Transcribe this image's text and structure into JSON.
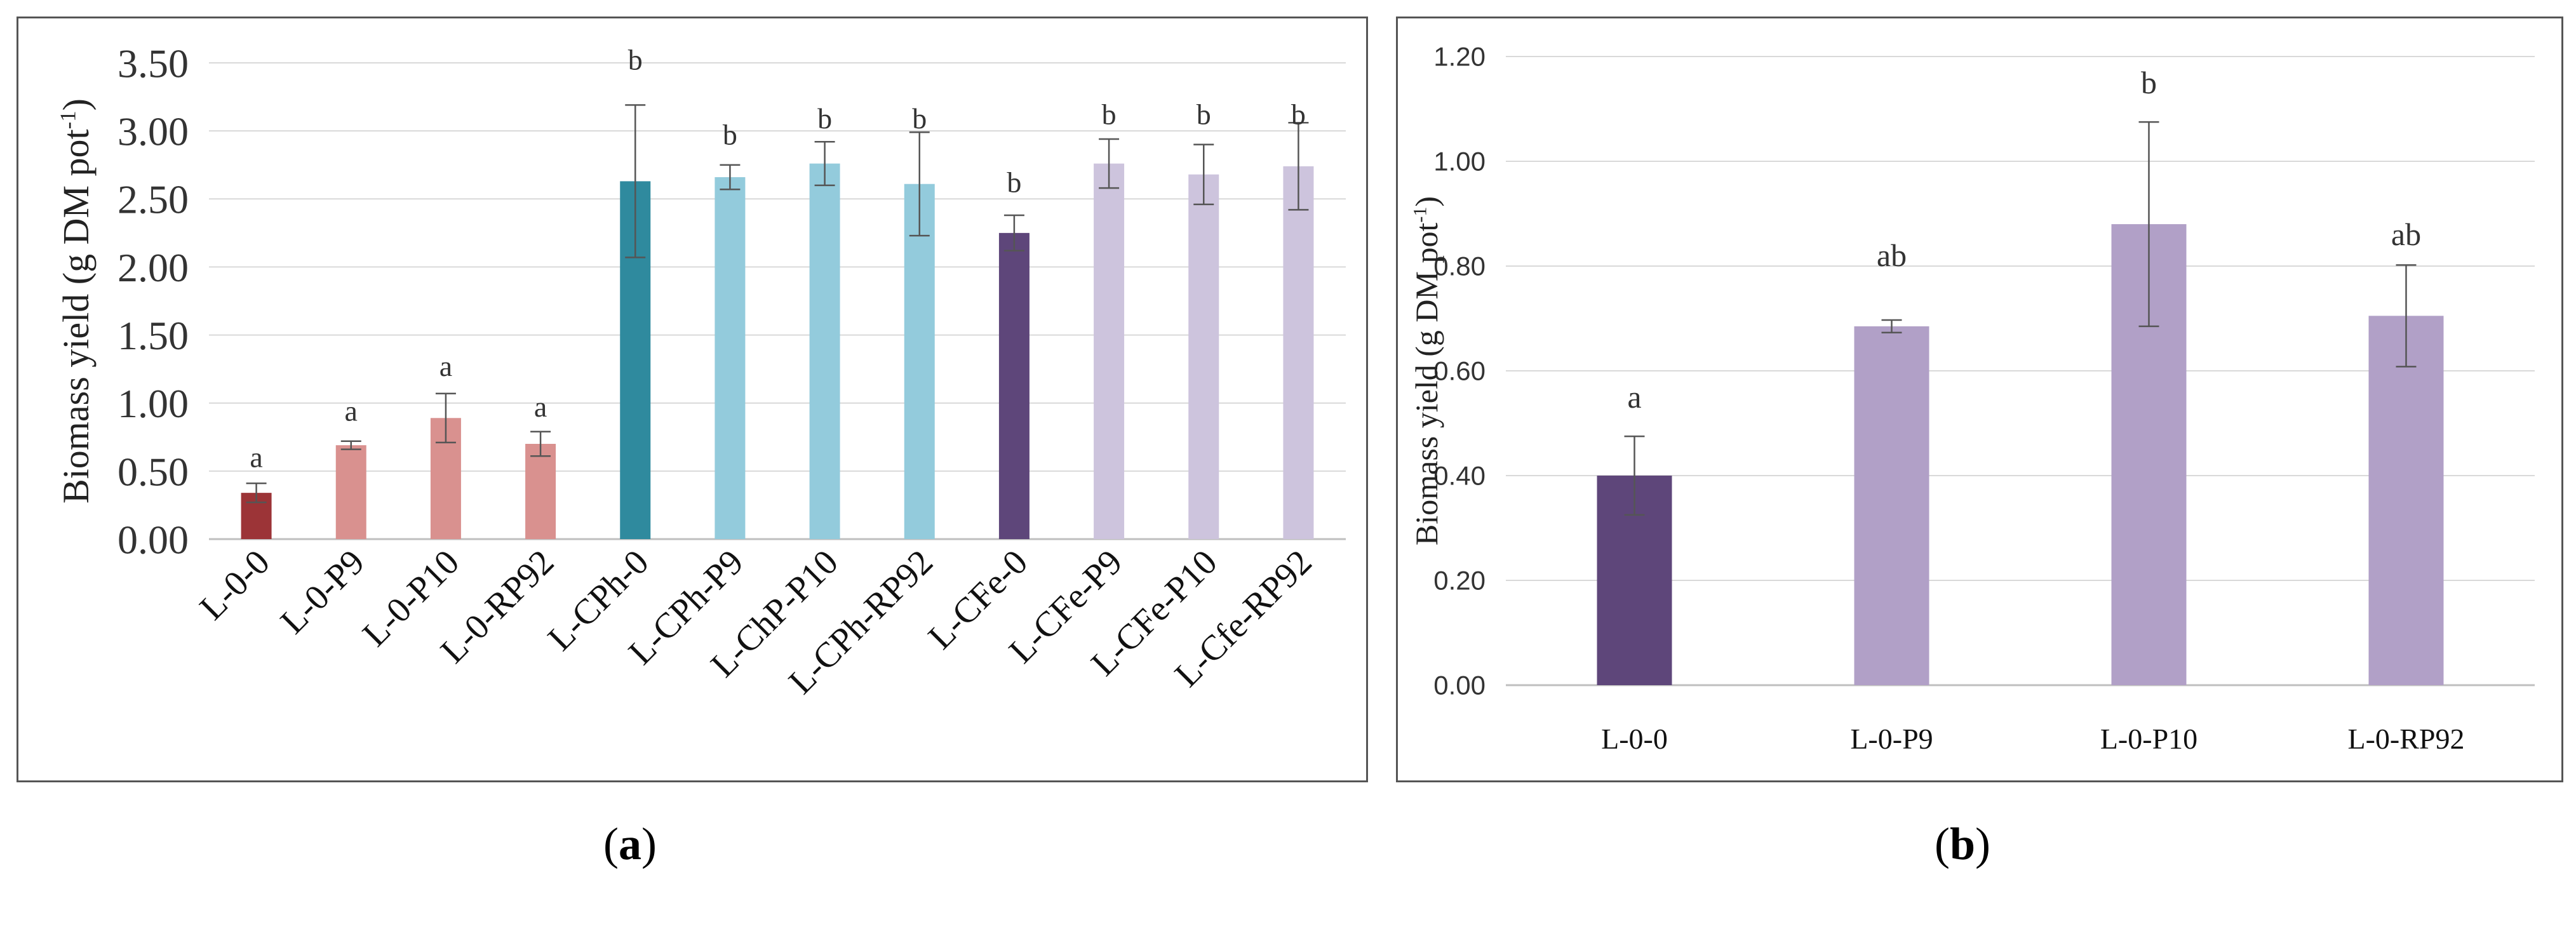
{
  "chart_data": [
    {
      "id": "a",
      "type": "bar",
      "ylabel_main": "Biomass yield (g DM pot",
      "ylabel_sup": "-1",
      "ylabel_end": ")",
      "ylim": [
        0,
        3.5
      ],
      "yticks": [
        "0.00",
        "0.50",
        "1.00",
        "1.50",
        "2.00",
        "2.50",
        "3.00",
        "3.50"
      ],
      "grid": true,
      "categories": [
        "L-0-0",
        "L-0-P9",
        "L-0-P10",
        "L-0-RP92",
        "L-CPh-0",
        "L-CPh-P9",
        "L-ChP-P10",
        "L-CPh-RP92",
        "L-CFe-0",
        "L-CFe-P9",
        "L-CFe-P10",
        "L-Cfe-RP92"
      ],
      "values": [
        0.34,
        0.69,
        0.89,
        0.7,
        2.63,
        2.66,
        2.76,
        2.61,
        2.25,
        2.76,
        2.68,
        2.74
      ],
      "errors": [
        0.07,
        0.03,
        0.18,
        0.09,
        0.56,
        0.09,
        0.16,
        0.38,
        0.13,
        0.18,
        0.22,
        0.32
      ],
      "letters": [
        "a",
        "a",
        "a",
        "a",
        "b",
        "b",
        "b",
        "b",
        "b",
        "b",
        "b",
        "b"
      ],
      "letter_values": [
        0.53,
        0.87,
        1.2,
        0.9,
        3.45,
        2.9,
        3.02,
        3.02,
        2.55,
        3.05,
        3.05,
        3.05
      ],
      "colors": [
        "#9c3437",
        "#d9918f",
        "#d9918f",
        "#d9918f",
        "#2f8a9e",
        "#93cbdc",
        "#93cbdc",
        "#93cbdc",
        "#5e467a",
        "#cdc4dd",
        "#cdc4dd",
        "#cdc4dd"
      ],
      "caption": "a"
    },
    {
      "id": "b",
      "type": "bar",
      "ylabel_main": "Biomass yield (g DM pot",
      "ylabel_sup": "-1",
      "ylabel_end": ")",
      "ylim": [
        0,
        1.2
      ],
      "yticks": [
        "0.00",
        "0.20",
        "0.40",
        "0.60",
        "0.80",
        "1.00",
        "1.20"
      ],
      "grid": true,
      "categories": [
        "L-0-0",
        "L-0-P9",
        "L-0-P10",
        "L-0-RP92"
      ],
      "values": [
        0.4,
        0.685,
        0.88,
        0.705
      ],
      "errors": [
        0.075,
        0.012,
        0.195,
        0.097
      ],
      "letters": [
        "a",
        "ab",
        "b",
        "ab"
      ],
      "letter_values": [
        0.53,
        0.8,
        1.13,
        0.84
      ],
      "colors": [
        "#5e467a",
        "#b1a0c7",
        "#b1a0c7",
        "#b1a0c7"
      ],
      "caption": "b"
    }
  ]
}
